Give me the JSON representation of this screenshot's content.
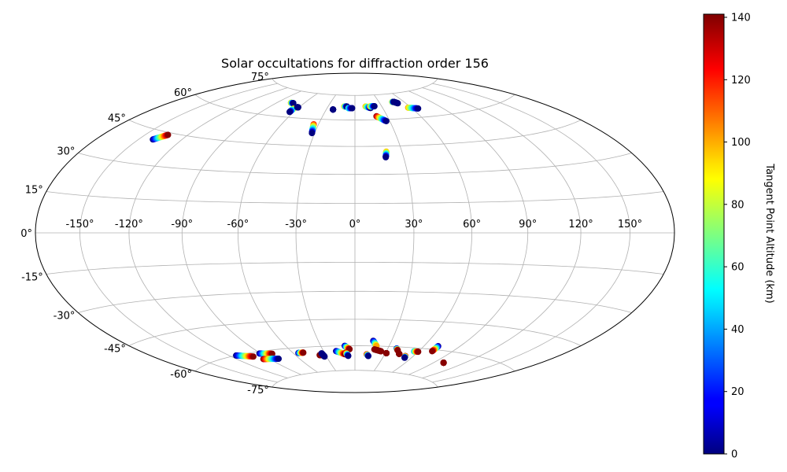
{
  "chart_data": {
    "type": "scatter",
    "projection": "hammer",
    "title": "Solar occultations for diffraction order 156",
    "lon_ticks": [
      "-150°",
      "-120°",
      "-90°",
      "-60°",
      "-30°",
      "0°",
      "30°",
      "60°",
      "90°",
      "120°",
      "150°"
    ],
    "lon_tick_values": [
      -150,
      -120,
      -90,
      -60,
      -30,
      0,
      30,
      60,
      90,
      120,
      150
    ],
    "lat_ticks": [
      "75°",
      "60°",
      "45°",
      "30°",
      "15°",
      "0°",
      "-15°",
      "-30°",
      "-45°",
      "-60°",
      "-75°"
    ],
    "lat_tick_values": [
      75,
      60,
      45,
      30,
      15,
      0,
      -15,
      -30,
      -45,
      -60,
      -75
    ],
    "grid": true,
    "colorbar": {
      "label": "Tangent Point Altitude (km)",
      "min": 0,
      "max": 141,
      "ticks": [
        "0",
        "20",
        "40",
        "60",
        "80",
        "100",
        "120",
        "140"
      ],
      "tick_values": [
        0,
        20,
        40,
        60,
        80,
        100,
        120,
        140
      ],
      "colormap": "jet"
    },
    "tracks": [
      {
        "lon": [
          -140,
          -134
        ],
        "lat": [
          41,
          44
        ],
        "alt": [
          0,
          140
        ]
      },
      {
        "lon": [
          -75,
          -72
        ],
        "lat": [
          68,
          68
        ],
        "alt": [
          100,
          0
        ]
      },
      {
        "lon": [
          -64,
          -64
        ],
        "lat": [
          65,
          63
        ],
        "alt": [
          100,
          0
        ]
      },
      {
        "lon": [
          -62,
          -61
        ],
        "lat": [
          66,
          66
        ],
        "alt": [
          0,
          0
        ]
      },
      {
        "lon": [
          -34,
          -32
        ],
        "lat": [
          57,
          52
        ],
        "alt": [
          120,
          0
        ]
      },
      {
        "lon": [
          -23,
          -23
        ],
        "lat": [
          66,
          66
        ],
        "alt": [
          0,
          0
        ]
      },
      {
        "lon": [
          -12,
          -9
        ],
        "lat": [
          68,
          68
        ],
        "alt": [
          100,
          0
        ]
      },
      {
        "lon": [
          -7,
          -3
        ],
        "lat": [
          67,
          67
        ],
        "alt": [
          60,
          0
        ]
      },
      {
        "lon": [
          12,
          17
        ],
        "lat": [
          68,
          67
        ],
        "alt": [
          100,
          0
        ]
      },
      {
        "lon": [
          17,
          22
        ],
        "lat": [
          68,
          68
        ],
        "alt": [
          100,
          0
        ]
      },
      {
        "lon": [
          20,
          27
        ],
        "lat": [
          62,
          59
        ],
        "alt": [
          140,
          0
        ]
      },
      {
        "lon": [
          20,
          19
        ],
        "lat": [
          42,
          39
        ],
        "alt": [
          100,
          0
        ]
      },
      {
        "lon": [
          46,
          48
        ],
        "lat": [
          70,
          70
        ],
        "alt": [
          100,
          0
        ]
      },
      {
        "lon": [
          48,
          51
        ],
        "lat": [
          70,
          69
        ],
        "alt": [
          0,
          0
        ]
      },
      {
        "lon": [
          57,
          66
        ],
        "lat": [
          66,
          65
        ],
        "alt": [
          100,
          0
        ]
      },
      {
        "lon": [
          -114,
          -101
        ],
        "lat": [
          -60,
          -62
        ],
        "alt": [
          0,
          140
        ]
      },
      {
        "lon": [
          -91,
          -80
        ],
        "lat": [
          -61,
          -62
        ],
        "alt": [
          0,
          140
        ]
      },
      {
        "lon": [
          -96,
          -81
        ],
        "lat": [
          -64,
          -65
        ],
        "alt": [
          140,
          0
        ]
      },
      {
        "lon": [
          -55,
          -50
        ],
        "lat": [
          -63,
          -63
        ],
        "alt": [
          0,
          140
        ]
      },
      {
        "lon": [
          -36,
          -34
        ],
        "lat": [
          -65,
          -65
        ],
        "alt": [
          140,
          140
        ]
      },
      {
        "lon": [
          -33,
          -32
        ],
        "lat": [
          -64,
          -66
        ],
        "alt": [
          0,
          0
        ]
      },
      {
        "lon": [
          -18,
          -10
        ],
        "lat": [
          -63,
          -65
        ],
        "alt": [
          0,
          140
        ]
      },
      {
        "lon": [
          -9,
          -5
        ],
        "lat": [
          -60,
          -62
        ],
        "alt": [
          0,
          140
        ]
      },
      {
        "lon": [
          -9,
          -7
        ],
        "lat": [
          -64,
          -66
        ],
        "alt": [
          140,
          0
        ]
      },
      {
        "lon": [
          12,
          14
        ],
        "lat": [
          -65,
          -66
        ],
        "alt": [
          140,
          0
        ]
      },
      {
        "lon": [
          15,
          19
        ],
        "lat": [
          -57,
          -60
        ],
        "alt": [
          0,
          100
        ]
      },
      {
        "lon": [
          18,
          25
        ],
        "lat": [
          -62,
          -63
        ],
        "alt": [
          140,
          140
        ]
      },
      {
        "lon": [
          31,
          31
        ],
        "lat": [
          -64,
          -64
        ],
        "alt": [
          140,
          140
        ]
      },
      {
        "lon": [
          38,
          40
        ],
        "lat": [
          -61,
          -62
        ],
        "alt": [
          0,
          140
        ]
      },
      {
        "lon": [
          44,
          44
        ],
        "lat": [
          -64,
          -64
        ],
        "alt": [
          140,
          140
        ]
      },
      {
        "lon": [
          52,
          53
        ],
        "lat": [
          -65,
          -66
        ],
        "alt": [
          140,
          0
        ]
      },
      {
        "lon": [
          56,
          60
        ],
        "lat": [
          -62,
          -62
        ],
        "alt": [
          40,
          140
        ]
      },
      {
        "lon": [
          72,
          72
        ],
        "lat": [
          -58,
          -61
        ],
        "alt": [
          0,
          140
        ]
      },
      {
        "lon": [
          100,
          100
        ],
        "lat": [
          -66,
          -66
        ],
        "alt": [
          140,
          140
        ]
      }
    ]
  }
}
